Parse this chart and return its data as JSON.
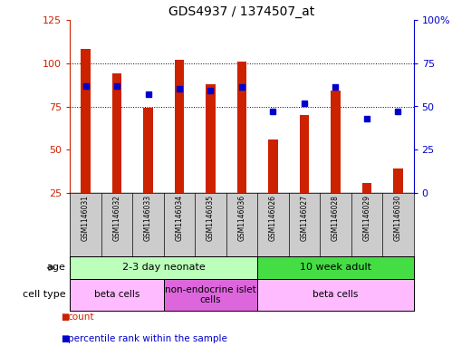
{
  "title": "GDS4937 / 1374507_at",
  "samples": [
    "GSM1146031",
    "GSM1146032",
    "GSM1146033",
    "GSM1146034",
    "GSM1146035",
    "GSM1146036",
    "GSM1146026",
    "GSM1146027",
    "GSM1146028",
    "GSM1146029",
    "GSM1146030"
  ],
  "bar_values": [
    108,
    94,
    74,
    102,
    88,
    101,
    56,
    70,
    84,
    31,
    39
  ],
  "percentile_values": [
    62,
    62,
    57,
    60,
    59,
    61,
    47,
    52,
    61,
    43,
    47
  ],
  "bar_color": "#cc2200",
  "dot_color": "#0000cc",
  "ylim_left": [
    25,
    125
  ],
  "ylim_right": [
    0,
    100
  ],
  "yticks_left": [
    25,
    50,
    75,
    100,
    125
  ],
  "yticks_right": [
    0,
    25,
    50,
    75,
    100
  ],
  "ytick_labels_right": [
    "0",
    "25",
    "50",
    "75",
    "100%"
  ],
  "dotted_lines": [
    75,
    100
  ],
  "age_groups": [
    {
      "label": "2-3 day neonate",
      "start": 0,
      "end": 6,
      "color": "#bbffbb"
    },
    {
      "label": "10 week adult",
      "start": 6,
      "end": 11,
      "color": "#44dd44"
    }
  ],
  "cell_type_groups": [
    {
      "label": "beta cells",
      "start": 0,
      "end": 3,
      "color": "#ffbbff"
    },
    {
      "label": "non-endocrine islet\ncells",
      "start": 3,
      "end": 6,
      "color": "#dd66dd"
    },
    {
      "label": "beta cells",
      "start": 6,
      "end": 11,
      "color": "#ffbbff"
    }
  ],
  "legend_items": [
    {
      "color": "#cc2200",
      "label": "count"
    },
    {
      "color": "#0000cc",
      "label": "percentile rank within the sample"
    }
  ],
  "left_yaxis_color": "#cc2200",
  "right_yaxis_color": "#0000cc",
  "background_color": "#ffffff",
  "label_bg": "#cccccc",
  "bar_width": 0.3
}
